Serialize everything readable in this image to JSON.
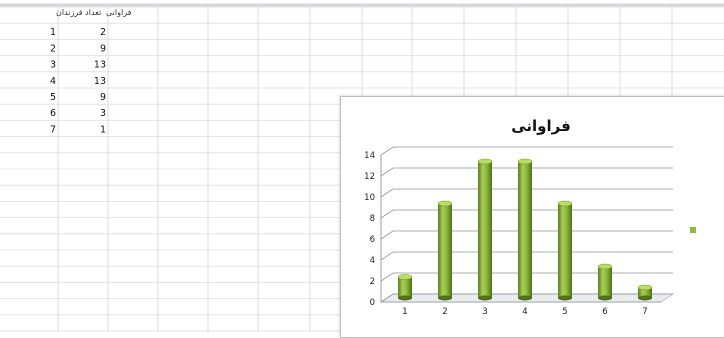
{
  "spreadsheet": {
    "columns": {
      "a_header": "تعداد فرزندان",
      "b_header": "فراوانی"
    },
    "rows": [
      {
        "children": 1,
        "frequency": 2
      },
      {
        "children": 2,
        "frequency": 9
      },
      {
        "children": 3,
        "frequency": 13
      },
      {
        "children": 4,
        "frequency": 13
      },
      {
        "children": 5,
        "frequency": 9
      },
      {
        "children": 6,
        "frequency": 3
      },
      {
        "children": 7,
        "frequency": 1
      }
    ]
  },
  "chart_data": {
    "type": "bar",
    "title": "فراوانی",
    "categories": [
      "1",
      "2",
      "3",
      "4",
      "5",
      "6",
      "7"
    ],
    "series": [
      {
        "name": "فراوانی",
        "values": [
          2,
          9,
          13,
          13,
          9,
          3,
          1
        ],
        "color": "#8fba3f"
      }
    ],
    "ylim": [
      0,
      14
    ],
    "yticks": [
      0,
      2,
      4,
      6,
      8,
      10,
      12,
      14
    ],
    "grid": true,
    "legend_position": "right",
    "style": "3d-cylinder"
  }
}
